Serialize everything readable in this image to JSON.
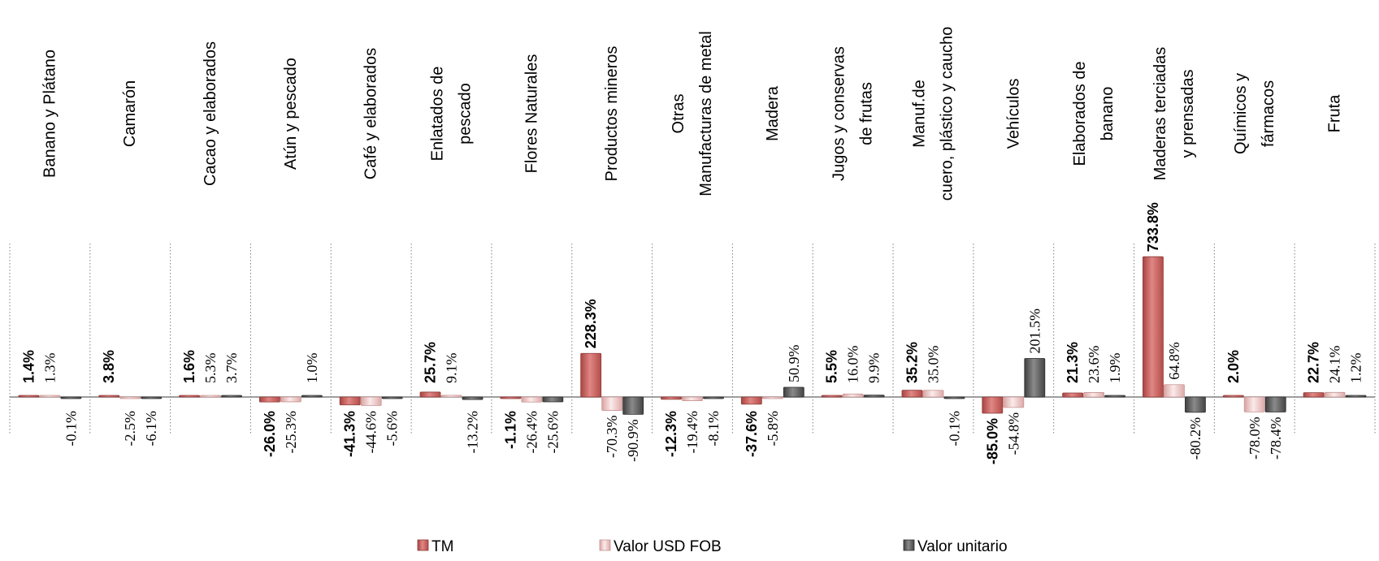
{
  "chart_data": {
    "type": "bar",
    "title": "",
    "xlabel": "",
    "ylabel": "",
    "grid": false,
    "legend_position": "bottom",
    "categories": [
      "Banano y Plátano",
      "Camarón",
      "Cacao y elaborados",
      "Atún y pescado",
      "Café y elaborados",
      "Enlatados de pescado",
      "Flores Naturales",
      "Productos mineros",
      "Otras Manufacturas de metal",
      "Madera",
      "Jugos y conservas de frutas",
      "Manuf.de cuero, plástico y caucho",
      "Vehículos",
      "Elaborados de banano",
      "Maderas terciadas y prensadas",
      "Químicos y fármacos",
      "Fruta"
    ],
    "category_lines": [
      [
        "Banano y Plátano"
      ],
      [
        "Camarón"
      ],
      [
        "Cacao y elaborados"
      ],
      [
        "Atún y pescado"
      ],
      [
        "Café y elaborados"
      ],
      [
        "Enlatados de",
        "pescado"
      ],
      [
        "Flores Naturales"
      ],
      [
        "Productos mineros"
      ],
      [
        "Otras",
        "Manufacturas de metal"
      ],
      [
        "Madera"
      ],
      [
        "Jugos y conservas",
        "de frutas"
      ],
      [
        "Manuf.de",
        "cuero, plástico y caucho"
      ],
      [
        "Vehículos"
      ],
      [
        "Elaborados de",
        "banano"
      ],
      [
        "Maderas terciadas",
        "y prensadas"
      ],
      [
        "Químicos y",
        "fármacos"
      ],
      [
        "Fruta"
      ]
    ],
    "series": [
      {
        "name": "TM",
        "values": [
          1.4,
          3.8,
          1.6,
          -26.0,
          -41.3,
          25.7,
          -1.1,
          228.3,
          -12.3,
          -37.6,
          5.5,
          35.2,
          -85.0,
          21.3,
          733.8,
          2.0,
          22.7
        ],
        "labels": [
          "1.4%",
          "3.8%",
          "1.6%",
          "-26.0%",
          "-41.3%",
          "25.7%",
          "-1.1%",
          "228.3%",
          "-12.3%",
          "-37.6%",
          "5.5%",
          "35.2%",
          "-85.0%",
          "21.3%",
          "733.8%",
          "2.0%",
          "22.7%"
        ],
        "color": "#c0504d"
      },
      {
        "name": "Valor  USD FOB",
        "values": [
          1.3,
          -2.5,
          5.3,
          -25.3,
          -44.6,
          9.1,
          -26.4,
          -70.3,
          -19.4,
          -5.8,
          16.0,
          35.0,
          -54.8,
          23.6,
          64.8,
          -78.0,
          24.1
        ],
        "labels": [
          "1.3%",
          "-2.5%",
          "5.3%",
          "-25.3%",
          "-44.6%",
          "9.1%",
          "-26.4%",
          "-70.3%",
          "-19.4%",
          "-5.8%",
          "16.0%",
          "35.0%",
          "-54.8%",
          "23.6%",
          "64.8%",
          "-78.0%",
          "24.1%"
        ],
        "color": "#e6b9b8"
      },
      {
        "name": "Valor unitario",
        "values": [
          -0.1,
          -6.1,
          3.7,
          1.0,
          -5.6,
          -13.2,
          -25.6,
          -90.9,
          -8.1,
          50.9,
          9.9,
          -0.1,
          201.5,
          1.9,
          -80.2,
          -78.4,
          1.2
        ],
        "labels": [
          "-0.1%",
          "-6.1%",
          "3.7%",
          "1.0%",
          "-5.6%",
          "-13.2%",
          "-25.6%",
          "-90.9%",
          "-8.1%",
          "50.9%",
          "9.9%",
          "-0.1%",
          "201.5%",
          "1.9%",
          "-80.2%",
          "-78.4%",
          "1.2%"
        ],
        "color": "#595959"
      }
    ]
  }
}
